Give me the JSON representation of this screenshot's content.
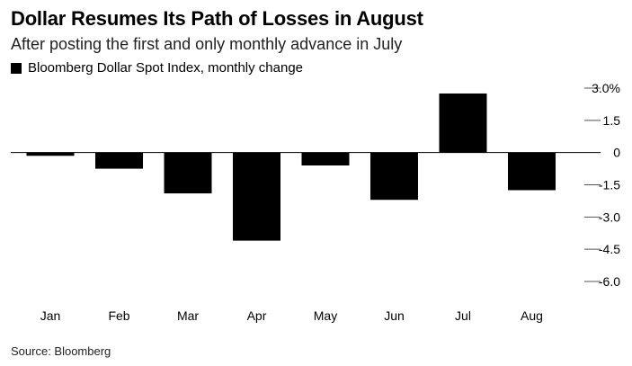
{
  "title": "Dollar Resumes Its Path of Losses in August",
  "subtitle": "After posting the first and only monthly advance in July",
  "legend": {
    "label": "Bloomberg Dollar Spot Index, monthly change"
  },
  "source": "Source: Bloomberg",
  "colors": {
    "bar": "#000000",
    "zero_line": "#000000",
    "tick": "#555555"
  },
  "chart_data": {
    "type": "bar",
    "title": "Dollar Resumes Its Path of Losses in August",
    "subtitle": "After posting the first and only monthly advance in July",
    "xlabel": "",
    "ylabel": "",
    "categories": [
      "Jan",
      "Feb",
      "Mar",
      "Apr",
      "May",
      "Jun",
      "Jul",
      "Aug"
    ],
    "series": [
      {
        "name": "Bloomberg Dollar Spot Index, monthly change",
        "values": [
          -0.15,
          -0.75,
          -1.9,
          -4.1,
          -0.6,
          -2.2,
          2.75,
          -1.75
        ]
      }
    ],
    "y_ticks": [
      3.0,
      1.5,
      0,
      -1.5,
      -3.0,
      -4.5,
      -6.0
    ],
    "y_tick_labels": [
      "3.0%",
      "1.5",
      "0",
      "-1.5",
      "-3.0",
      "-4.5",
      "-6.0"
    ],
    "ylim": [
      -6.0,
      3.0
    ],
    "y_axis_side": "right",
    "grid": false
  }
}
